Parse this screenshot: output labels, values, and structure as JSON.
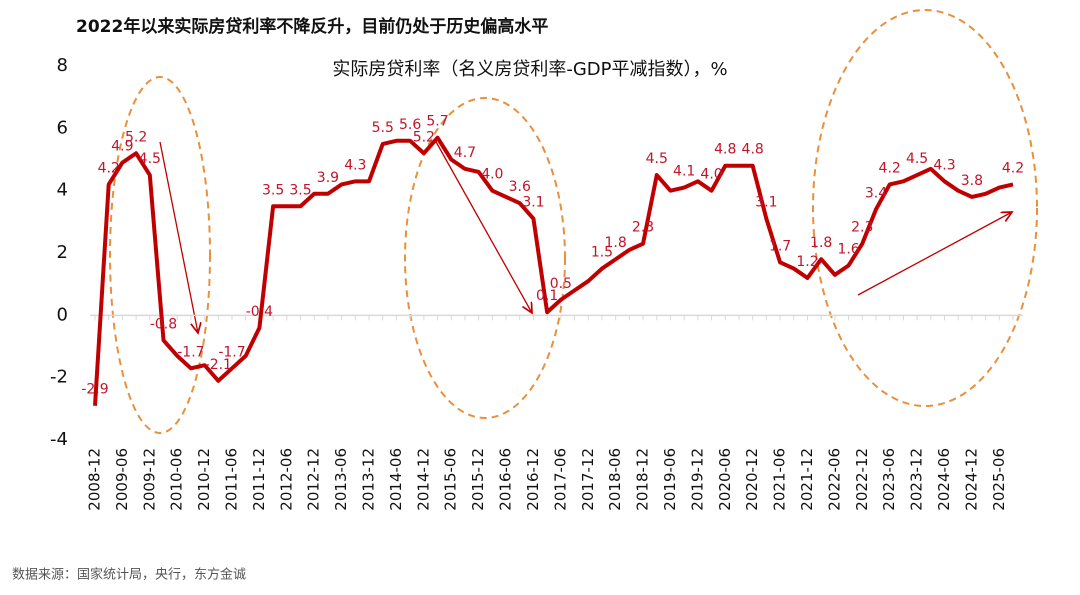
{
  "chart_data": {
    "type": "line",
    "title": "2022年以来实际房贷利率不降反升，目前仍处于历史偏高水平",
    "subtitle": "实际房贷利率（名义房贷利率-GDP平减指数），%",
    "source": "数据来源：国家统计局，央行，东方金诚",
    "categories": [
      "2008-12",
      null,
      "2009-06",
      null,
      "2009-12",
      null,
      "2010-06",
      null,
      "2010-12",
      null,
      "2011-06",
      null,
      "2011-12",
      null,
      "2012-06",
      null,
      "2012-12",
      null,
      "2013-06",
      null,
      "2013-12",
      null,
      "2014-06",
      null,
      "2014-12",
      null,
      "2015-06",
      null,
      "2015-12",
      null,
      "2016-06",
      null,
      "2016-12",
      null,
      "2017-06",
      null,
      "2017-12",
      null,
      "2018-06",
      null,
      "2018-12",
      null,
      "2019-06",
      null,
      "2019-12",
      null,
      "2020-06",
      null,
      "2020-12",
      null,
      "2021-06",
      null,
      "2021-12",
      null,
      "2022-06",
      null,
      "2022-12",
      null,
      "2023-06",
      null,
      "2023-12",
      null,
      "2024-06",
      null,
      "2024-12",
      null,
      "2025-06",
      null
    ],
    "series": [
      {
        "color": "#c00000",
        "values": [
          -2.9,
          4.2,
          4.9,
          5.2,
          4.5,
          -0.8,
          -1.3,
          -1.7,
          -1.6,
          -2.1,
          -1.7,
          -1.3,
          -0.4,
          3.5,
          3.5,
          3.5,
          3.9,
          3.9,
          4.2,
          4.3,
          4.3,
          5.5,
          5.6,
          5.6,
          5.2,
          5.7,
          5.0,
          4.7,
          4.6,
          4.0,
          3.8,
          3.6,
          3.1,
          0.1,
          0.5,
          0.8,
          1.1,
          1.5,
          1.8,
          2.1,
          2.3,
          4.5,
          4.0,
          4.1,
          4.3,
          4.0,
          4.8,
          4.8,
          4.8,
          3.1,
          1.7,
          1.5,
          1.2,
          1.8,
          1.3,
          1.6,
          2.3,
          3.4,
          4.2,
          4.3,
          4.5,
          4.7,
          4.3,
          4.0,
          3.8,
          3.9,
          4.1,
          4.2
        ],
        "value_labels": [
          "-2.9",
          "4.2",
          "4.9",
          "5.2",
          "4.5",
          "-0.8",
          null,
          "-1.7",
          null,
          "-2.1",
          "-1.7",
          null,
          "-0.4",
          "3.5",
          null,
          "3.5",
          null,
          "3.9",
          null,
          "4.3",
          null,
          "5.5",
          null,
          "5.6",
          "5.2",
          "5.7",
          null,
          "4.7",
          null,
          "4.0",
          null,
          "3.6",
          "3.1",
          "0.1",
          "0.5",
          null,
          null,
          "1.5",
          "1.8",
          null,
          "2.3",
          "4.5",
          null,
          "4.1",
          null,
          "4.0",
          "4.8",
          null,
          "4.8",
          "3.1",
          "1.7",
          null,
          "1.2",
          "1.8",
          null,
          "1.6",
          "2.3",
          "3.4",
          "4.2",
          null,
          "4.5",
          null,
          "4.3",
          null,
          "3.8",
          null,
          null,
          "4.2"
        ]
      }
    ],
    "ylim": [
      -4,
      8
    ],
    "yticks": [
      -4,
      -2,
      0,
      2,
      4,
      6,
      8
    ],
    "grid": false
  }
}
